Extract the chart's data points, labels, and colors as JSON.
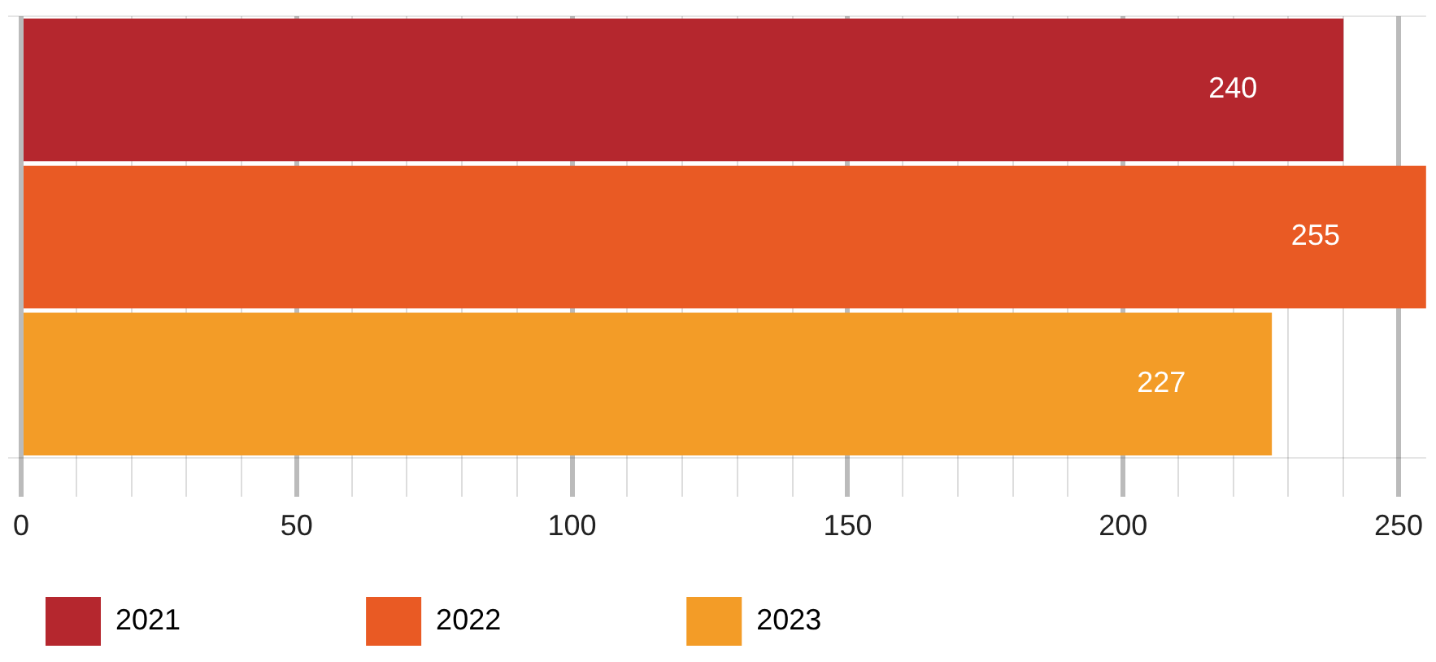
{
  "chart_data": {
    "type": "bar",
    "orientation": "horizontal",
    "categories": [
      null
    ],
    "series": [
      {
        "name": "2021",
        "color": "#b5272e",
        "values": [
          240
        ]
      },
      {
        "name": "2022",
        "color": "#e95a24",
        "values": [
          255
        ]
      },
      {
        "name": "2023",
        "color": "#f39c27",
        "values": [
          227
        ]
      }
    ],
    "xlim": [
      0,
      255
    ],
    "xticks": [
      0,
      {
        "value": 10,
        "label": null
      },
      {
        "value": 20,
        "label": null
      },
      {
        "value": 30,
        "label": null
      },
      {
        "value": 40,
        "label": null
      },
      50,
      {
        "value": 60,
        "label": null
      },
      {
        "value": 70,
        "label": null
      },
      {
        "value": 80,
        "label": null
      },
      {
        "value": 90,
        "label": null
      },
      100,
      {
        "value": 110,
        "label": null
      },
      {
        "value": 120,
        "label": null
      },
      {
        "value": 130,
        "label": null
      },
      {
        "value": 140,
        "label": null
      },
      150,
      {
        "value": 160,
        "label": null
      },
      {
        "value": 170,
        "label": null
      },
      {
        "value": 180,
        "label": null
      },
      {
        "value": 190,
        "label": null
      },
      200,
      {
        "value": 210,
        "label": null
      },
      {
        "value": 220,
        "label": null
      },
      {
        "value": 230,
        "label": null
      },
      {
        "value": 240,
        "label": null
      },
      250
    ],
    "grid": true,
    "legend": "bottom left",
    "data_labels": true,
    "tick_labels": "x"
  }
}
